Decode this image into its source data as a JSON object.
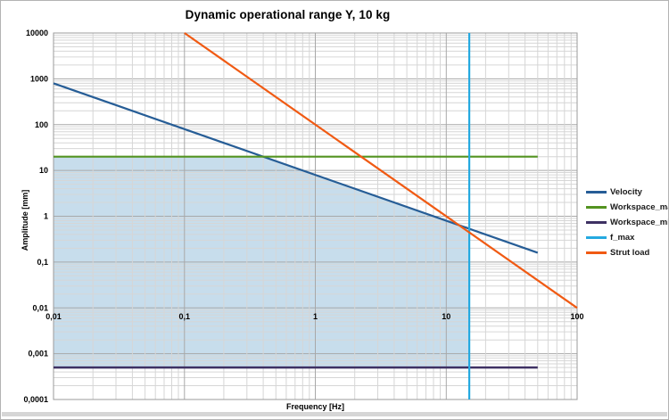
{
  "chart_data": {
    "type": "line",
    "title": "Dynamic operational range Y, 10 kg",
    "xlabel": "Frequency [Hz]",
    "ylabel": "Amplitude [mm]",
    "x_scale": "log",
    "y_scale": "log",
    "xlim": [
      0.01,
      100
    ],
    "ylim": [
      0.0001,
      10000
    ],
    "grid": "log major and minor gridlines, both axes",
    "legend_position": "right",
    "x_ticks": {
      "values": [
        0.01,
        0.1,
        1,
        10,
        100
      ],
      "labels": [
        "0,01",
        "0,1",
        "1",
        "10",
        "100"
      ]
    },
    "y_ticks": {
      "values": [
        10000,
        1000,
        100,
        10,
        1,
        0.1,
        0.01,
        0.001,
        0.0001
      ],
      "labels": [
        "10000",
        "1000",
        "100",
        "10",
        "1",
        "0,1",
        "0,01",
        "0,001",
        "0,0001"
      ]
    },
    "series": [
      {
        "name": "Velocity",
        "color": "#265d96",
        "width": 2.2,
        "points": [
          [
            0.01,
            800
          ],
          [
            50,
            0.16
          ]
        ]
      },
      {
        "name": "Workspace_max",
        "color": "#539320",
        "width": 2.2,
        "points": [
          [
            0.01,
            20
          ],
          [
            50,
            20
          ]
        ]
      },
      {
        "name": "Workspace_min",
        "color": "#3e3163",
        "width": 2.5,
        "points": [
          [
            0.01,
            0.0005
          ],
          [
            50,
            0.0005
          ]
        ]
      },
      {
        "name": "f_max",
        "color": "#25a9e0",
        "width": 2.2,
        "points": [
          [
            15,
            0.0001
          ],
          [
            15,
            10000
          ]
        ]
      },
      {
        "name": "Strut load",
        "color": "#f05a13",
        "width": 2.2,
        "points": [
          [
            0.1,
            10000
          ],
          [
            100,
            0.01
          ]
        ]
      }
    ],
    "operational_region": {
      "fill_color": "#bdd7e9",
      "opacity": 0.85,
      "vertices": [
        [
          0.01,
          0.0005
        ],
        [
          0.01,
          20
        ],
        [
          0.4,
          20
        ],
        [
          12.5,
          0.64
        ],
        [
          15,
          0.4444
        ],
        [
          15,
          0.0005
        ]
      ]
    },
    "style": {
      "background": "#ffffff",
      "grid_major": "#a8a8a8",
      "grid_minor": "#d6d6d6",
      "plot_border": "#9b9b9b"
    }
  }
}
